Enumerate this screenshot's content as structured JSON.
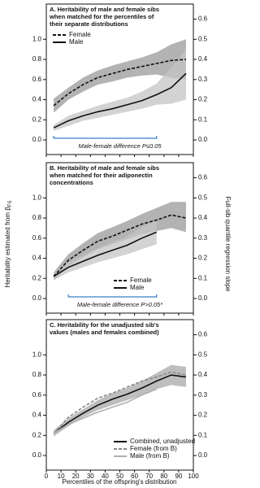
{
  "figure": {
    "y_label": "Heritability estimated from β",
    "y_label_sub": "FS",
    "y2_label": "Full-sib quantile regression slope",
    "x_label": "Percentiles of the offspring's distribution"
  },
  "chart_data": [
    {
      "type": "line",
      "title_lines": [
        "A. Heritability of male and female sibs",
        "when matched for the percentiles of",
        "their separate distributions"
      ],
      "x": [
        5,
        15,
        25,
        35,
        45,
        55,
        65,
        75,
        85,
        95
      ],
      "xlim": [
        0,
        100
      ],
      "xticks": [
        0,
        10,
        20,
        30,
        40,
        50,
        60,
        70,
        80,
        90,
        100
      ],
      "ylim": [
        -0.145,
        1.35
      ],
      "yticks": [
        {
          "value": 0,
          "label": "0.0"
        },
        0.2,
        0.4,
        0.6,
        0.8,
        {
          "value": 1,
          "label": "1.0"
        }
      ],
      "y2lim": [
        -0.0725,
        0.675
      ],
      "y2ticks": [
        {
          "value": 0,
          "label": "0.0"
        },
        0.1,
        0.2,
        0.3,
        0.4,
        0.5,
        0.6
      ],
      "legend": "upper left",
      "series": [
        {
          "name": "Female",
          "color": "#111111",
          "band_color": "#9a9a9a",
          "dashed": true,
          "values": [
            0.34,
            0.46,
            0.55,
            0.62,
            0.66,
            0.7,
            0.73,
            0.76,
            0.79,
            0.8
          ],
          "lower": [
            0.27,
            0.4,
            0.48,
            0.55,
            0.58,
            0.62,
            0.64,
            0.65,
            0.62,
            0.6
          ],
          "upper": [
            0.41,
            0.52,
            0.62,
            0.69,
            0.74,
            0.78,
            0.82,
            0.87,
            0.95,
            1.0
          ]
        },
        {
          "name": "Male",
          "color": "#111111",
          "band_color": "#c4c4c4",
          "dashed": false,
          "values": [
            0.12,
            0.19,
            0.24,
            0.28,
            0.31,
            0.35,
            0.39,
            0.45,
            0.52,
            0.66
          ],
          "lower": [
            0.09,
            0.14,
            0.19,
            0.22,
            0.25,
            0.28,
            0.31,
            0.35,
            0.36,
            0.4
          ],
          "upper": [
            0.15,
            0.24,
            0.29,
            0.34,
            0.38,
            0.42,
            0.48,
            0.56,
            0.72,
            0.9
          ]
        }
      ],
      "annotation": {
        "text": "Male-female difference P≤0.05",
        "range": [
          5,
          75
        ],
        "color": "#3a7fc4"
      }
    },
    {
      "type": "line",
      "title_lines": [
        "B. Heritability of male and female sibs",
        "when matched for their adiponectin",
        "concentrations"
      ],
      "x": [
        5,
        15,
        25,
        35,
        45,
        55,
        65,
        75,
        85,
        95
      ],
      "xlim": [
        0,
        100
      ],
      "xticks": [
        0,
        10,
        20,
        30,
        40,
        50,
        60,
        70,
        80,
        90,
        100
      ],
      "ylim": [
        -0.145,
        1.35
      ],
      "yticks": [
        {
          "value": 0,
          "label": "0.0"
        },
        0.2,
        0.4,
        0.6,
        0.8,
        {
          "value": 1,
          "label": "1.0"
        }
      ],
      "y2lim": [
        -0.0725,
        0.675
      ],
      "y2ticks": [
        {
          "value": 0,
          "label": "0.0"
        },
        0.1,
        0.2,
        0.3,
        0.4,
        0.5,
        0.6
      ],
      "legend": "lower right",
      "series": [
        {
          "name": "Female",
          "color": "#111111",
          "band_color": "#9a9a9a",
          "dashed": true,
          "values": [
            0.22,
            0.38,
            0.48,
            0.57,
            0.62,
            0.68,
            0.74,
            0.78,
            0.83,
            0.8
          ],
          "lower": [
            0.18,
            0.32,
            0.41,
            0.49,
            0.54,
            0.59,
            0.64,
            0.67,
            0.7,
            0.66
          ],
          "upper": [
            0.26,
            0.44,
            0.55,
            0.65,
            0.71,
            0.77,
            0.84,
            0.9,
            0.96,
            0.96
          ]
        },
        {
          "name": "Male",
          "color": "#111111",
          "band_color": "#c4c4c4",
          "dashed": false,
          "values": [
            0.22,
            0.31,
            0.37,
            0.43,
            0.48,
            0.53,
            0.6,
            0.66,
            null,
            null
          ],
          "lower": [
            0.18,
            0.26,
            0.31,
            0.36,
            0.4,
            0.44,
            0.49,
            0.54,
            null,
            null
          ],
          "upper": [
            0.26,
            0.36,
            0.43,
            0.5,
            0.56,
            0.62,
            0.71,
            0.78,
            null,
            null
          ]
        }
      ],
      "annotation": {
        "text": "Male-female difference P>0.05*",
        "range": [
          15,
          75
        ],
        "color": "#3a7fc4"
      }
    },
    {
      "type": "line",
      "title_lines": [
        "C. Heritability for the unadjusted sib's",
        "values (males and females combined)"
      ],
      "x": [
        5,
        15,
        25,
        35,
        45,
        55,
        65,
        75,
        85,
        95
      ],
      "xlim": [
        0,
        100
      ],
      "xticks": [
        0,
        10,
        20,
        30,
        40,
        50,
        60,
        70,
        80,
        90,
        100
      ],
      "ylim": [
        -0.145,
        1.35
      ],
      "yticks": [
        {
          "value": 0,
          "label": "0.0"
        },
        0.2,
        0.4,
        0.6,
        0.8,
        {
          "value": 1,
          "label": "1.0"
        }
      ],
      "y2lim": [
        -0.0725,
        0.675
      ],
      "y2ticks": [
        {
          "value": 0,
          "label": "0.0"
        },
        0.1,
        0.2,
        0.3,
        0.4,
        0.5,
        0.6
      ],
      "legend": "lower right",
      "series": [
        {
          "name": "Combined, unadjusted",
          "color": "#111111",
          "band_color": "#a8a8a8",
          "dashed": false,
          "values": [
            0.22,
            0.33,
            0.42,
            0.5,
            0.56,
            0.61,
            0.67,
            0.74,
            0.8,
            0.78
          ],
          "lower": [
            0.19,
            0.29,
            0.38,
            0.45,
            0.5,
            0.55,
            0.6,
            0.66,
            0.7,
            0.68
          ],
          "upper": [
            0.25,
            0.37,
            0.46,
            0.55,
            0.62,
            0.67,
            0.74,
            0.82,
            0.9,
            0.88
          ]
        },
        {
          "name": "Female (from B)",
          "color": "#8a8a8a",
          "dashed": true,
          "values": [
            0.22,
            0.38,
            0.48,
            0.57,
            0.62,
            0.68,
            0.74,
            0.78,
            0.83,
            0.8
          ]
        },
        {
          "name": "Male (from B)",
          "color": "#b0b0b0",
          "dashed": false,
          "values": [
            0.22,
            0.31,
            0.37,
            0.43,
            0.48,
            0.53,
            0.6,
            0.66,
            null,
            null
          ]
        }
      ]
    }
  ]
}
